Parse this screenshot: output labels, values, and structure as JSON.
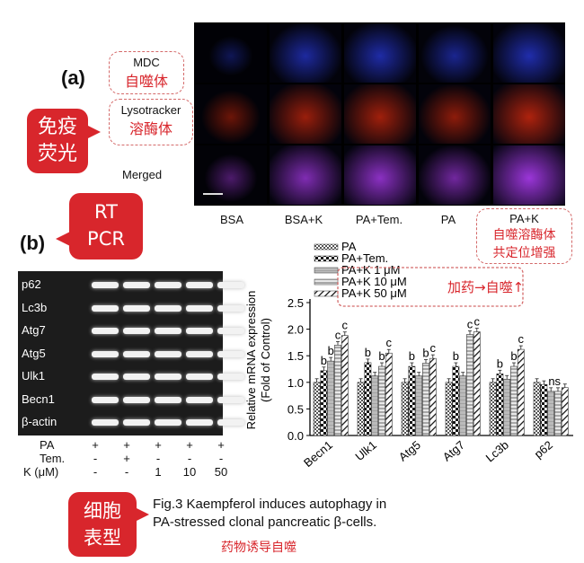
{
  "panel_a": {
    "letter": "(a)",
    "bubble": {
      "line1": "免疫",
      "line2": "荧光"
    },
    "row_labels": [
      {
        "en": "MDC",
        "zh": "自噬体"
      },
      {
        "en": "Lysotracker",
        "zh": "溶酶体"
      },
      {
        "en": "Merged"
      }
    ],
    "columns": [
      "BSA",
      "BSA+K",
      "PA+Tem.",
      "PA",
      "PA+K"
    ],
    "pak_note": {
      "line1": "自噬溶酶体",
      "line2": "共定位增强"
    },
    "intensity": [
      [
        0.05,
        0.55,
        0.6,
        0.45,
        0.65
      ],
      [
        0.3,
        0.65,
        0.7,
        0.55,
        0.8
      ],
      [
        0.2,
        0.7,
        0.8,
        0.55,
        0.95
      ]
    ]
  },
  "panel_b": {
    "letter": "(b)",
    "bubble": {
      "line1": "RT",
      "line2": "PCR"
    },
    "genes": [
      "p62",
      "Lc3b",
      "Atg7",
      "Atg5",
      "Ulk1",
      "Becn1",
      "β-actin"
    ],
    "conditions": [
      {
        "label": "PA",
        "values": [
          "+",
          "+",
          "+",
          "+",
          "+"
        ]
      },
      {
        "label": "Tem.",
        "values": [
          "-",
          "+",
          "-",
          "-",
          "-"
        ]
      },
      {
        "label": "K (μM)",
        "values": [
          "-",
          "-",
          "1",
          "10",
          "50"
        ]
      }
    ]
  },
  "chart_data": {
    "type": "bar",
    "ylabel": "Relative mRNA expression (Fold of Control)",
    "ylabel_line1": "Relative mRNA expression",
    "ylabel_line2": "(Fold of Control)",
    "ylim": [
      0,
      2.5
    ],
    "yticks": [
      "0.0",
      "0.5",
      "1.0",
      "1.5",
      "2.0",
      "2.5"
    ],
    "categories": [
      "Becn1",
      "Ulk1",
      "Atg5",
      "Atg7",
      "Lc3b",
      "p62"
    ],
    "series": [
      {
        "name": "PA",
        "values": [
          1.0,
          1.0,
          1.0,
          1.0,
          1.0,
          1.0
        ]
      },
      {
        "name": "PA+Tem.",
        "values": [
          1.22,
          1.37,
          1.3,
          1.3,
          1.16,
          0.96
        ]
      },
      {
        "name": "PA+K 1 μM",
        "values": [
          1.4,
          1.12,
          1.12,
          1.12,
          1.06,
          0.83
        ]
      },
      {
        "name": "PA+K 10 μM",
        "values": [
          1.7,
          1.3,
          1.36,
          1.9,
          1.3,
          0.83
        ]
      },
      {
        "name": "PA+K 50 μM",
        "values": [
          1.88,
          1.55,
          1.45,
          1.95,
          1.62,
          0.9
        ]
      }
    ],
    "annotations": [
      {
        "category": "Becn1",
        "series": 1,
        "text": "b"
      },
      {
        "category": "Becn1",
        "series": 2,
        "text": "b"
      },
      {
        "category": "Becn1",
        "series": 3,
        "text": "c"
      },
      {
        "category": "Becn1",
        "series": 4,
        "text": "c"
      },
      {
        "category": "Ulk1",
        "series": 1,
        "text": "b"
      },
      {
        "category": "Ulk1",
        "series": 3,
        "text": "b"
      },
      {
        "category": "Ulk1",
        "series": 4,
        "text": "c"
      },
      {
        "category": "Atg5",
        "series": 1,
        "text": "b"
      },
      {
        "category": "Atg5",
        "series": 3,
        "text": "b"
      },
      {
        "category": "Atg5",
        "series": 4,
        "text": "c"
      },
      {
        "category": "Atg7",
        "series": 1,
        "text": "b"
      },
      {
        "category": "Atg7",
        "series": 3,
        "text": "c"
      },
      {
        "category": "Atg7",
        "series": 4,
        "text": "c"
      },
      {
        "category": "Lc3b",
        "series": 1,
        "text": "b"
      },
      {
        "category": "Lc3b",
        "series": 3,
        "text": "b"
      },
      {
        "category": "Lc3b",
        "series": 4,
        "text": "c"
      },
      {
        "category": "p62",
        "series": 2,
        "text": "ns"
      }
    ],
    "legend_note": "加药→自噬↑"
  },
  "bottom": {
    "bubble": {
      "line1": "细胞",
      "line2": "表型"
    },
    "caption_line1": "Fig.3 Kaempferol induces autophagy in",
    "caption_line2": "PA-stressed clonal pancreatic β-cells.",
    "note": "药物诱导自噬"
  },
  "colors": {
    "accent": "#d8262c",
    "mdc": "#2a3be0",
    "lyso": "#c82810",
    "merged": "#a038e0"
  }
}
